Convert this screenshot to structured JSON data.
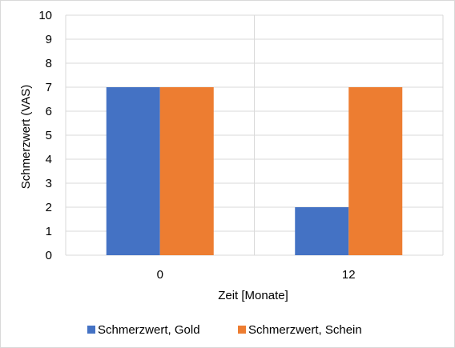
{
  "chart_data": {
    "type": "bar",
    "categories": [
      "0",
      "12"
    ],
    "series": [
      {
        "name": "Schmerzwert, Gold",
        "values": [
          7,
          2
        ],
        "color": "#4472C4"
      },
      {
        "name": "Schmerzwert, Schein",
        "values": [
          7,
          7
        ],
        "color": "#ED7D31"
      }
    ],
    "title": "",
    "xlabel": "Zeit [Monate]",
    "ylabel": "Schmerzwert (VAS)",
    "ylim": [
      0,
      10
    ],
    "yticks": [
      "0",
      "1",
      "2",
      "3",
      "4",
      "5",
      "6",
      "7",
      "8",
      "9",
      "10"
    ],
    "grid": true,
    "legend_position": "bottom",
    "gridline_color": "#d9d9d9"
  }
}
